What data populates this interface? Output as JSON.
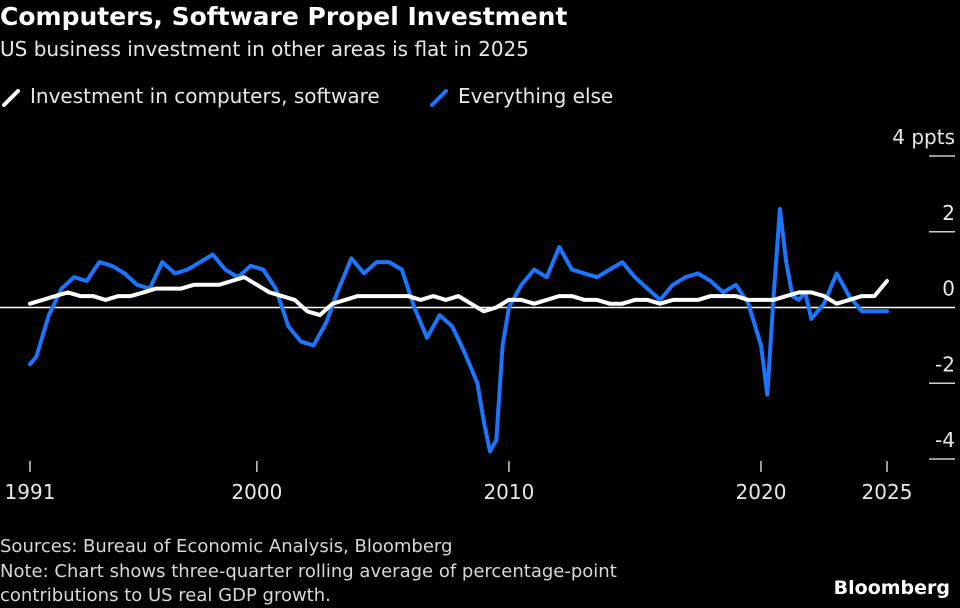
{
  "title": "Computers, Software Propel Investment",
  "subtitle": "US business investment in other areas is flat in 2025",
  "legend": [
    {
      "label": "Investment in computers, software",
      "color": "#ffffff"
    },
    {
      "label": "Everything else",
      "color": "#1a75ff"
    }
  ],
  "footer": {
    "sources": "Sources: Bureau of Economic Analysis, Bloomberg",
    "note": "Note: Chart shows three-quarter rolling average of percentage-point contributions to US real GDP growth.",
    "brand": "Bloomberg"
  },
  "colors": {
    "background": "#000000",
    "computers": "#ffffff",
    "everything_else": "#1a75ff",
    "zero_line": "#ffffff"
  },
  "chart_data": {
    "type": "line",
    "title": "Computers, Software Propel Investment",
    "subtitle": "US business investment in other areas is flat in 2025",
    "y_unit_label": "4 ppts",
    "ylim": [
      -4,
      4
    ],
    "yticks": [
      4,
      2,
      0,
      -2,
      -4
    ],
    "ytick_labels": [
      "4 ppts",
      "2",
      "0",
      "-2",
      "-4"
    ],
    "xlim": [
      1991,
      2025.75
    ],
    "xticks": [
      1991,
      2000,
      2010,
      2020,
      2025
    ],
    "xtick_labels": [
      "1991",
      "2000",
      "2010",
      "2020",
      "2025"
    ],
    "grid": false,
    "legend_position": "top-left",
    "series": [
      {
        "name": "Investment in computers, software",
        "color": "#ffffff",
        "x": [
          1991,
          1991.5,
          1992,
          1992.5,
          1993,
          1993.5,
          1994,
          1994.5,
          1995,
          1995.5,
          1996,
          1996.5,
          1997,
          1997.5,
          1998,
          1998.5,
          1999,
          1999.5,
          2000,
          2000.5,
          2001,
          2001.5,
          2002,
          2002.5,
          2003,
          2003.5,
          2004,
          2004.5,
          2005,
          2005.5,
          2006,
          2006.5,
          2007,
          2007.5,
          2008,
          2008.5,
          2009,
          2009.5,
          2010,
          2010.5,
          2011,
          2011.5,
          2012,
          2012.5,
          2013,
          2013.5,
          2014,
          2014.5,
          2015,
          2015.5,
          2016,
          2016.5,
          2017,
          2017.5,
          2018,
          2018.5,
          2019,
          2019.5,
          2020,
          2020.5,
          2021,
          2021.5,
          2022,
          2022.5,
          2023,
          2023.5,
          2024,
          2024.5,
          2025
        ],
        "values": [
          0.1,
          0.2,
          0.3,
          0.4,
          0.3,
          0.3,
          0.2,
          0.3,
          0.3,
          0.4,
          0.5,
          0.5,
          0.5,
          0.6,
          0.6,
          0.6,
          0.7,
          0.8,
          0.6,
          0.4,
          0.3,
          0.2,
          -0.1,
          -0.2,
          0.1,
          0.2,
          0.3,
          0.3,
          0.3,
          0.3,
          0.3,
          0.2,
          0.3,
          0.2,
          0.3,
          0.1,
          -0.1,
          0.0,
          0.2,
          0.2,
          0.1,
          0.2,
          0.3,
          0.3,
          0.2,
          0.2,
          0.1,
          0.1,
          0.2,
          0.2,
          0.1,
          0.2,
          0.2,
          0.2,
          0.3,
          0.3,
          0.3,
          0.2,
          0.2,
          0.2,
          0.3,
          0.4,
          0.4,
          0.3,
          0.1,
          0.2,
          0.3,
          0.3,
          0.7
        ]
      },
      {
        "name": "Everything else",
        "color": "#1a75ff",
        "x": [
          1991,
          1991.25,
          1991.75,
          1992.25,
          1992.75,
          1993.25,
          1993.75,
          1994.25,
          1994.75,
          1995.25,
          1995.75,
          1996.25,
          1996.75,
          1997.25,
          1997.75,
          1998.25,
          1998.75,
          1999.25,
          1999.75,
          2000.25,
          2000.75,
          2001.25,
          2001.75,
          2002.25,
          2002.75,
          2003.25,
          2003.75,
          2004.25,
          2004.75,
          2005.25,
          2005.75,
          2006.25,
          2006.75,
          2007.25,
          2007.75,
          2008.25,
          2008.75,
          2009.0,
          2009.25,
          2009.5,
          2009.75,
          2010.0,
          2010.5,
          2011.0,
          2011.5,
          2012.0,
          2012.5,
          2013.0,
          2013.5,
          2014.0,
          2014.5,
          2015.0,
          2015.5,
          2016.0,
          2016.5,
          2017.0,
          2017.5,
          2018.0,
          2018.5,
          2019.0,
          2019.5,
          2020.0,
          2020.25,
          2020.5,
          2020.75,
          2021.0,
          2021.25,
          2021.5,
          2021.75,
          2022.0,
          2022.5,
          2023.0,
          2023.5,
          2024.0,
          2024.5,
          2025.0
        ],
        "values": [
          -1.5,
          -1.3,
          -0.2,
          0.5,
          0.8,
          0.7,
          1.2,
          1.1,
          0.9,
          0.6,
          0.5,
          1.2,
          0.9,
          1.0,
          1.2,
          1.4,
          1.0,
          0.8,
          1.1,
          1.0,
          0.5,
          -0.5,
          -0.9,
          -1.0,
          -0.4,
          0.5,
          1.3,
          0.9,
          1.2,
          1.2,
          1.0,
          0.0,
          -0.8,
          -0.2,
          -0.5,
          -1.2,
          -2.0,
          -3.0,
          -3.8,
          -3.5,
          -1.0,
          0.0,
          0.6,
          1.0,
          0.8,
          1.6,
          1.0,
          0.9,
          0.8,
          1.0,
          1.2,
          0.8,
          0.5,
          0.2,
          0.6,
          0.8,
          0.9,
          0.7,
          0.4,
          0.6,
          0.1,
          -1.0,
          -2.3,
          0.3,
          2.6,
          1.2,
          0.3,
          0.2,
          0.4,
          -0.3,
          0.1,
          0.9,
          0.3,
          -0.1,
          -0.1,
          -0.1
        ]
      }
    ]
  }
}
